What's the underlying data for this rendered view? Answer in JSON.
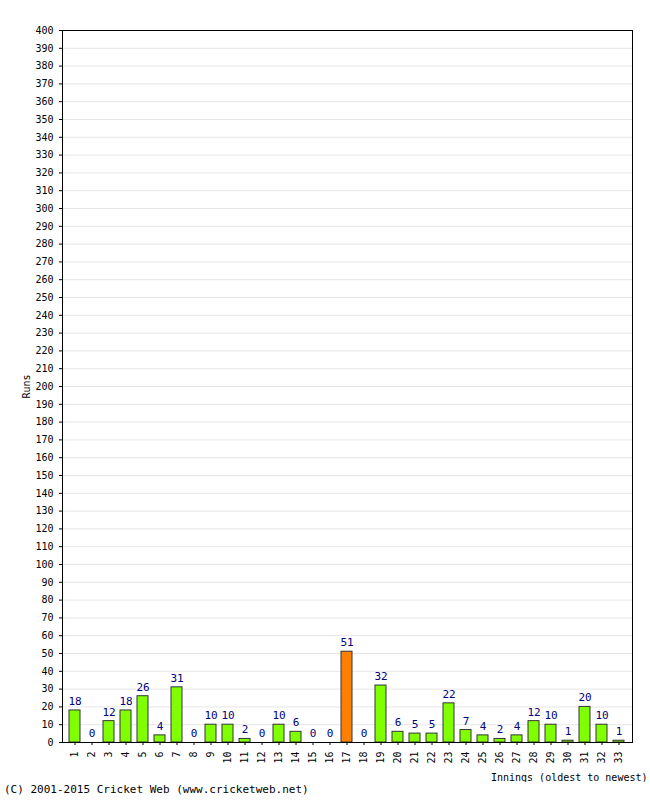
{
  "chart_data": {
    "type": "bar",
    "x_label": "Innings (oldest to newest)",
    "y_label": "Runs",
    "caption": "(C) 2001-2015 Cricket Web (www.cricketweb.net)",
    "categories": [
      "1",
      "2",
      "3",
      "4",
      "5",
      "6",
      "7",
      "8",
      "9",
      "10",
      "11",
      "12",
      "13",
      "14",
      "15",
      "16",
      "17",
      "18",
      "19",
      "20",
      "21",
      "22",
      "23",
      "24",
      "25",
      "26",
      "27",
      "28",
      "29",
      "30",
      "31",
      "32",
      "33"
    ],
    "values": [
      18,
      0,
      12,
      18,
      26,
      4,
      31,
      0,
      10,
      10,
      2,
      0,
      10,
      6,
      0,
      0,
      51,
      0,
      32,
      6,
      5,
      5,
      22,
      7,
      4,
      2,
      4,
      12,
      10,
      1,
      20,
      10,
      1
    ],
    "colors": [
      "#80ff00",
      "#80ff00",
      "#80ff00",
      "#80ff00",
      "#80ff00",
      "#80ff00",
      "#80ff00",
      "#80ff00",
      "#80ff00",
      "#80ff00",
      "#80ff00",
      "#80ff00",
      "#80ff00",
      "#80ff00",
      "#80ff00",
      "#80ff00",
      "#ff8000",
      "#80ff00",
      "#80ff00",
      "#80ff00",
      "#80ff00",
      "#80ff00",
      "#80ff00",
      "#80ff00",
      "#80ff00",
      "#80ff00",
      "#80ff00",
      "#80ff00",
      "#80ff00",
      "#80ff00",
      "#80ff00",
      "#80ff00",
      "#80ff00"
    ],
    "ylim": [
      0,
      400
    ],
    "yticks": [
      0,
      10,
      20,
      30,
      40,
      50,
      60,
      70,
      80,
      90,
      100,
      110,
      120,
      130,
      140,
      150,
      160,
      170,
      180,
      190,
      200,
      210,
      220,
      230,
      240,
      250,
      260,
      270,
      280,
      290,
      300,
      310,
      320,
      330,
      340,
      350,
      360,
      370,
      380,
      390,
      400
    ],
    "grid": true,
    "data_labels": true
  }
}
